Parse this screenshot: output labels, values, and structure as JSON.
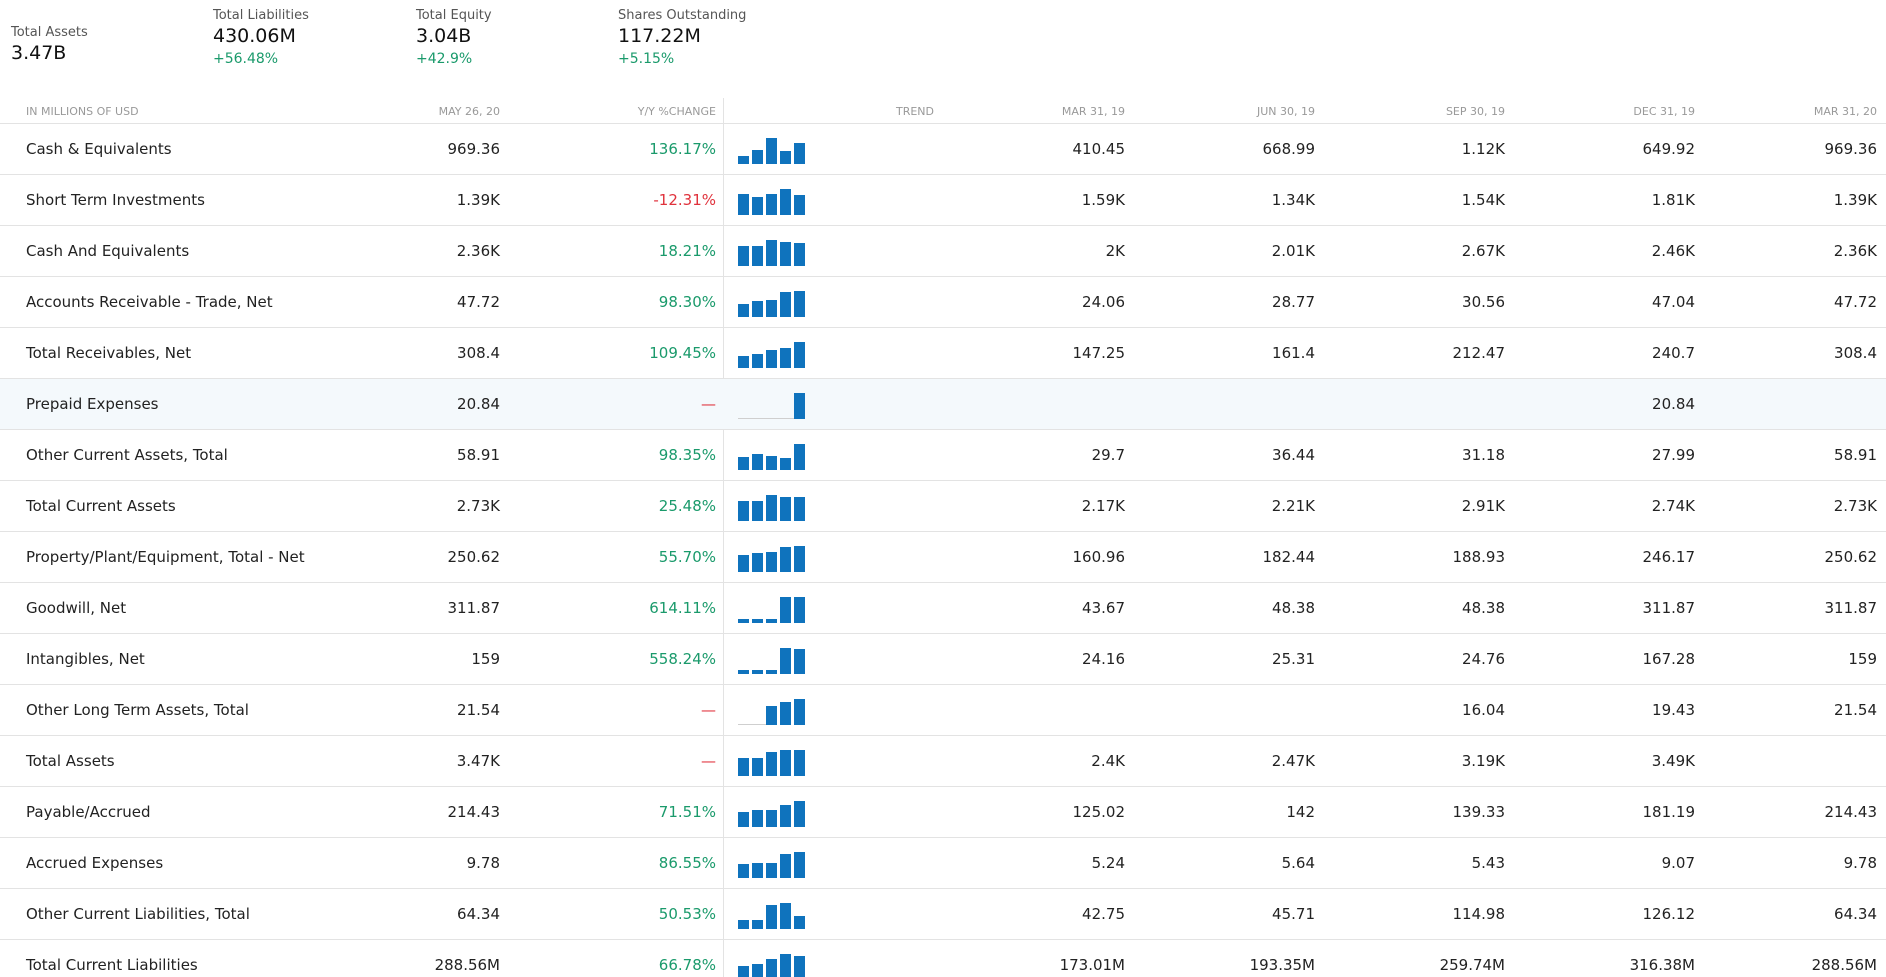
{
  "summary": [
    {
      "label": "Total Assets",
      "value": "3.47B",
      "change": ""
    },
    {
      "label": "Total Liabilities",
      "value": "430.06M",
      "change": "+56.48%"
    },
    {
      "label": "Total Equity",
      "value": "3.04B",
      "change": "+42.9%"
    },
    {
      "label": "Shares Outstanding",
      "value": "117.22M",
      "change": "+5.15%"
    }
  ],
  "header": {
    "name": "IN MILLIONS OF USD",
    "date": "MAY 26, 20",
    "yoy": "Y/Y %CHANGE",
    "trend": "TREND",
    "q1": "MAR 31, 19",
    "q2": "JUN 30, 19",
    "q3": "SEP 30, 19",
    "q4": "DEC 31, 19",
    "q5": "MAR 31, 20"
  },
  "colors": {
    "positive": "#1a9a6b",
    "negative": "#e0323c",
    "bar": "#0f73bd"
  },
  "rows": [
    {
      "name": "Cash & Equivalents",
      "date": "969.36",
      "yoy": "136.17%",
      "sign": "pos",
      "trend": [
        0.3,
        0.55,
        1.0,
        0.5,
        0.8
      ],
      "q": [
        "410.45",
        "668.99",
        "1.12K",
        "649.92",
        "969.36"
      ]
    },
    {
      "name": "Short Term Investments",
      "date": "1.39K",
      "yoy": "-12.31%",
      "sign": "neg",
      "trend": [
        0.8,
        0.7,
        0.8,
        1.0,
        0.75
      ],
      "q": [
        "1.59K",
        "1.34K",
        "1.54K",
        "1.81K",
        "1.39K"
      ]
    },
    {
      "name": "Cash And Equivalents",
      "date": "2.36K",
      "yoy": "18.21%",
      "sign": "pos",
      "trend": [
        0.75,
        0.75,
        1.0,
        0.92,
        0.88
      ],
      "q": [
        "2K",
        "2.01K",
        "2.67K",
        "2.46K",
        "2.36K"
      ]
    },
    {
      "name": "Accounts Receivable - Trade, Net",
      "date": "47.72",
      "yoy": "98.30%",
      "sign": "pos",
      "trend": [
        0.5,
        0.6,
        0.64,
        0.98,
        1.0
      ],
      "q": [
        "24.06",
        "28.77",
        "30.56",
        "47.04",
        "47.72"
      ]
    },
    {
      "name": "Total Receivables, Net",
      "date": "308.4",
      "yoy": "109.45%",
      "sign": "pos",
      "trend": [
        0.47,
        0.52,
        0.68,
        0.78,
        1.0
      ],
      "q": [
        "147.25",
        "161.4",
        "212.47",
        "240.7",
        "308.4"
      ]
    },
    {
      "name": "Prepaid Expenses",
      "date": "20.84",
      "yoy": "—",
      "sign": "neg",
      "trend": [
        0,
        0,
        0,
        0,
        1.0
      ],
      "q": [
        "",
        "",
        "",
        "20.84",
        ""
      ],
      "highlight": true
    },
    {
      "name": "Other Current Assets, Total",
      "date": "58.91",
      "yoy": "98.35%",
      "sign": "pos",
      "trend": [
        0.5,
        0.62,
        0.53,
        0.47,
        1.0
      ],
      "q": [
        "29.7",
        "36.44",
        "31.18",
        "27.99",
        "58.91"
      ]
    },
    {
      "name": "Total Current Assets",
      "date": "2.73K",
      "yoy": "25.48%",
      "sign": "pos",
      "trend": [
        0.75,
        0.76,
        1.0,
        0.94,
        0.94
      ],
      "q": [
        "2.17K",
        "2.21K",
        "2.91K",
        "2.74K",
        "2.73K"
      ]
    },
    {
      "name": "Property/Plant/Equipment, Total - Net",
      "date": "250.62",
      "yoy": "55.70%",
      "sign": "pos",
      "trend": [
        0.64,
        0.73,
        0.75,
        0.98,
        1.0
      ],
      "q": [
        "160.96",
        "182.44",
        "188.93",
        "246.17",
        "250.62"
      ]
    },
    {
      "name": "Goodwill, Net",
      "date": "311.87",
      "yoy": "614.11%",
      "sign": "pos",
      "trend": [
        0.14,
        0.16,
        0.16,
        1.0,
        1.0
      ],
      "q": [
        "43.67",
        "48.38",
        "48.38",
        "311.87",
        "311.87"
      ]
    },
    {
      "name": "Intangibles, Net",
      "date": "159",
      "yoy": "558.24%",
      "sign": "pos",
      "trend": [
        0.14,
        0.15,
        0.15,
        1.0,
        0.95
      ],
      "q": [
        "24.16",
        "25.31",
        "24.76",
        "167.28",
        "159"
      ]
    },
    {
      "name": "Other Long Term Assets, Total",
      "date": "21.54",
      "yoy": "—",
      "sign": "neg",
      "trend": [
        0,
        0,
        0.74,
        0.9,
        1.0
      ],
      "q": [
        "",
        "",
        "16.04",
        "19.43",
        "21.54"
      ]
    },
    {
      "name": "Total Assets",
      "date": "3.47K",
      "yoy": "—",
      "sign": "neg",
      "trend": [
        0.69,
        0.71,
        0.91,
        1.0,
        0.99
      ],
      "q": [
        "2.4K",
        "2.47K",
        "3.19K",
        "3.49K",
        ""
      ]
    },
    {
      "name": "Payable/Accrued",
      "date": "214.43",
      "yoy": "71.51%",
      "sign": "pos",
      "trend": [
        0.58,
        0.66,
        0.65,
        0.84,
        1.0
      ],
      "q": [
        "125.02",
        "142",
        "139.33",
        "181.19",
        "214.43"
      ]
    },
    {
      "name": "Accrued Expenses",
      "date": "9.78",
      "yoy": "86.55%",
      "sign": "pos",
      "trend": [
        0.54,
        0.58,
        0.56,
        0.93,
        1.0
      ],
      "q": [
        "5.24",
        "5.64",
        "5.43",
        "9.07",
        "9.78"
      ]
    },
    {
      "name": "Other Current Liabilities, Total",
      "date": "64.34",
      "yoy": "50.53%",
      "sign": "pos",
      "trend": [
        0.34,
        0.36,
        0.91,
        1.0,
        0.51
      ],
      "q": [
        "42.75",
        "45.71",
        "114.98",
        "126.12",
        "64.34"
      ]
    },
    {
      "name": "Total Current Liabilities",
      "date": "288.56M",
      "yoy": "66.78%",
      "sign": "pos",
      "trend": [
        0.55,
        0.61,
        0.82,
        1.0,
        0.91
      ],
      "q": [
        "173.01M",
        "193.35M",
        "259.74M",
        "316.38M",
        "288.56M"
      ]
    }
  ]
}
